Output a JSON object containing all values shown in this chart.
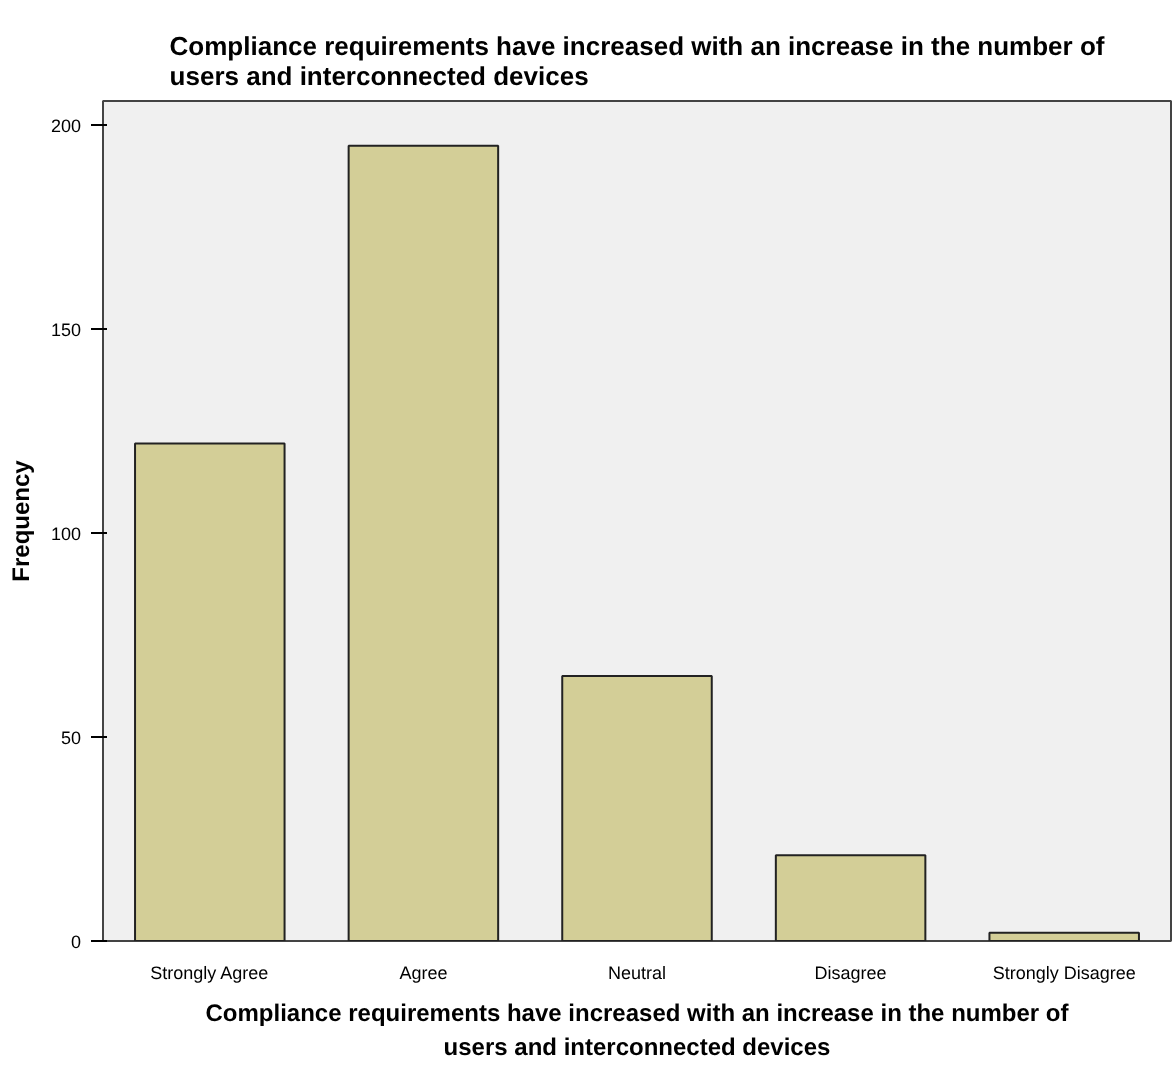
{
  "chart_data": {
    "type": "bar",
    "title": "Compliance requirements have increased with an increase in the number of\nusers and interconnected devices",
    "xlabel": "Compliance requirements have increased with an increase in the number of\nusers and interconnected devices",
    "ylabel": "Frequency",
    "categories": [
      "Strongly Agree",
      "Agree",
      "Neutral",
      "Disagree",
      "Strongly Disagree"
    ],
    "values": [
      122,
      195,
      65,
      21,
      2
    ],
    "color": "#d3ce97",
    "ylim": [
      0,
      206
    ],
    "yticks": [
      0,
      50,
      100,
      150,
      200
    ],
    "grid": false
  }
}
